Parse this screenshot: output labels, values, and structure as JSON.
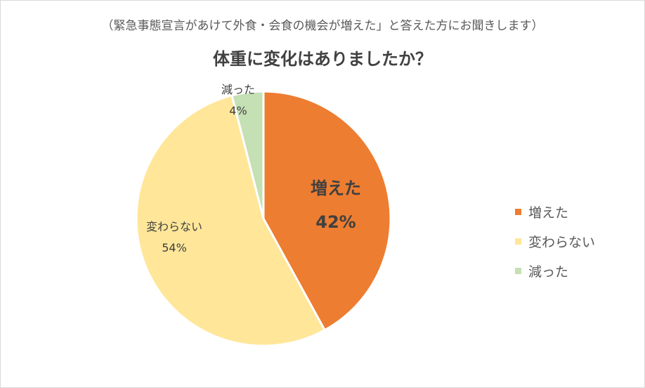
{
  "subtitle": "（緊急事態宣言があけて外食・会食の機会が増えた」と答えた方にお聞きします）",
  "chart_data": {
    "type": "pie",
    "title": "体重に変化はありましたか？",
    "legend_position": "right",
    "slices": [
      {
        "label": "増えた",
        "value": 42,
        "percent_label": "42%",
        "color": "#ED7D31",
        "label_color": "#404040",
        "label_weight": "bold"
      },
      {
        "label": "変わらない",
        "value": 54,
        "percent_label": "54%",
        "color": "#FFE699",
        "label_color": "#404040",
        "label_weight": "normal"
      },
      {
        "label": "減った",
        "value": 4,
        "percent_label": "4%",
        "color": "#C5E0B4",
        "label_color": "#404040",
        "label_weight": "normal"
      }
    ]
  }
}
